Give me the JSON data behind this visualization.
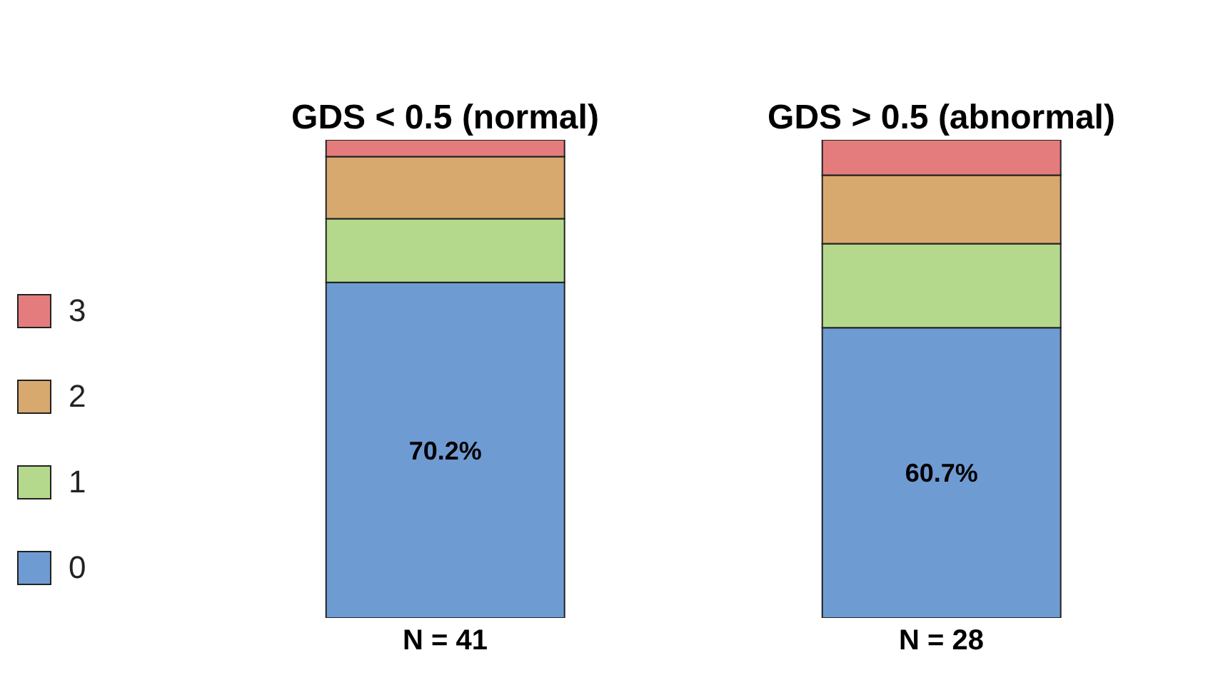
{
  "chart_data": {
    "type": "bar",
    "stacked": true,
    "categories": [
      "GDS < 0.5 (normal)",
      "GDS > 0.5 (abnormal)"
    ],
    "ylim": [
      0,
      100
    ],
    "tick_labels": "x",
    "legend": "left",
    "grid": false,
    "series": [
      {
        "name": "0",
        "color": "#6f9bd3",
        "values": [
          70.2,
          60.7
        ],
        "value_labels": [
          "70.2%",
          "60.7%"
        ]
      },
      {
        "name": "1",
        "color": "#b4d98c",
        "values": [
          13.3,
          17.6
        ]
      },
      {
        "name": "2",
        "color": "#d8a96f",
        "values": [
          13.0,
          14.3
        ]
      },
      {
        "name": "3",
        "color": "#e47c7e",
        "values": [
          3.5,
          7.4
        ]
      }
    ],
    "annotations": [
      "N = 41",
      "N = 28"
    ]
  }
}
